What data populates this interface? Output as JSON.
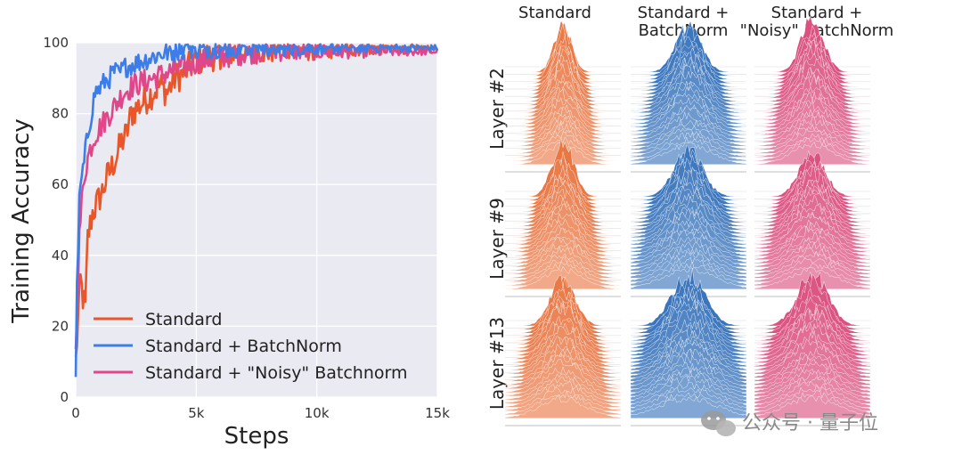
{
  "chart_data": [
    {
      "type": "line",
      "xlabel": "Steps",
      "ylabel": "Training Accuracy",
      "xlim": [
        0,
        15000
      ],
      "ylim": [
        0,
        100
      ],
      "x_ticks": [
        0,
        5000,
        10000,
        15000
      ],
      "x_tick_labels": [
        "0",
        "5k",
        "10k",
        "15k"
      ],
      "y_ticks": [
        0,
        20,
        40,
        60,
        80,
        100
      ],
      "y_tick_labels": [
        "0",
        "20",
        "40",
        "60",
        "80",
        "100"
      ],
      "grid": true,
      "legend_position": "bottom-left",
      "series": [
        {
          "name": "Standard",
          "color": "#e8562a",
          "x": [
            0,
            100,
            200,
            300,
            400,
            500,
            700,
            900,
            1100,
            1300,
            1500,
            1700,
            1900,
            2100,
            2300,
            2600,
            2900,
            3200,
            3500,
            3800,
            4100,
            4400,
            4700,
            5000,
            5500,
            6000,
            6500,
            7000,
            7500,
            8000,
            8500,
            9000,
            9500,
            10000,
            11000,
            12000,
            13000,
            14000,
            15000
          ],
          "y": [
            10,
            22,
            33,
            28,
            25,
            45,
            52,
            55,
            58,
            62,
            65,
            68,
            72,
            74,
            80,
            82,
            84,
            86,
            88,
            86,
            90,
            91,
            93,
            95,
            96,
            97,
            97.5,
            98,
            98,
            97.5,
            98.5,
            98,
            98,
            98,
            98.5,
            98.5,
            98.5,
            98.5,
            98.5
          ]
        },
        {
          "name": "Standard + BatchNorm",
          "color": "#3c7de8",
          "x": [
            0,
            50,
            150,
            250,
            350,
            450,
            600,
            800,
            1000,
            1200,
            1400,
            1600,
            1800,
            2000,
            2400,
            2800,
            3200,
            3600,
            4000,
            4400,
            4800,
            5200,
            6000,
            7000,
            8000,
            9000,
            10000,
            11000,
            12000,
            13000,
            14000,
            15000
          ],
          "y": [
            8,
            30,
            55,
            62,
            66,
            72,
            78,
            86,
            87,
            89,
            90,
            92,
            91,
            93,
            94,
            95,
            96,
            97,
            97.5,
            98,
            98.5,
            98.5,
            98.5,
            98.5,
            98.5,
            98.5,
            98.5,
            98.5,
            98.5,
            98.5,
            98.5,
            98.5
          ]
        },
        {
          "name": "Standard + \"Noisy\" Batchnorm",
          "color": "#e0468a",
          "x": [
            0,
            50,
            150,
            250,
            350,
            450,
            600,
            800,
            1000,
            1200,
            1400,
            1600,
            1800,
            2000,
            2400,
            2800,
            3200,
            3600,
            4000,
            4400,
            4800,
            5200,
            6000,
            7000,
            8000,
            9000,
            10000,
            11000,
            12000,
            13000,
            14000,
            15000
          ],
          "y": [
            12,
            25,
            45,
            55,
            62,
            66,
            70,
            74,
            76,
            78,
            80,
            82,
            84,
            86,
            88,
            89,
            90,
            91,
            92,
            93,
            94,
            95,
            96,
            97,
            97.5,
            97.5,
            97.5,
            97.5,
            97.5,
            97.5,
            97.5,
            97.5
          ]
        }
      ]
    },
    {
      "type": "ridgeline-grid",
      "column_titles": [
        [
          "Standard"
        ],
        [
          "Standard +",
          "BatchNorm"
        ],
        [
          "Standard +",
          "\"Noisy\" BatchNorm"
        ]
      ],
      "row_labels": [
        "Layer #2",
        "Layer #9",
        "Layer #13"
      ],
      "column_colors": [
        "#e8703a",
        "#2f6db8",
        "#d94878"
      ]
    }
  ],
  "watermark": {
    "text": "公众号 · 量子位",
    "icon": "wechat-icon"
  }
}
